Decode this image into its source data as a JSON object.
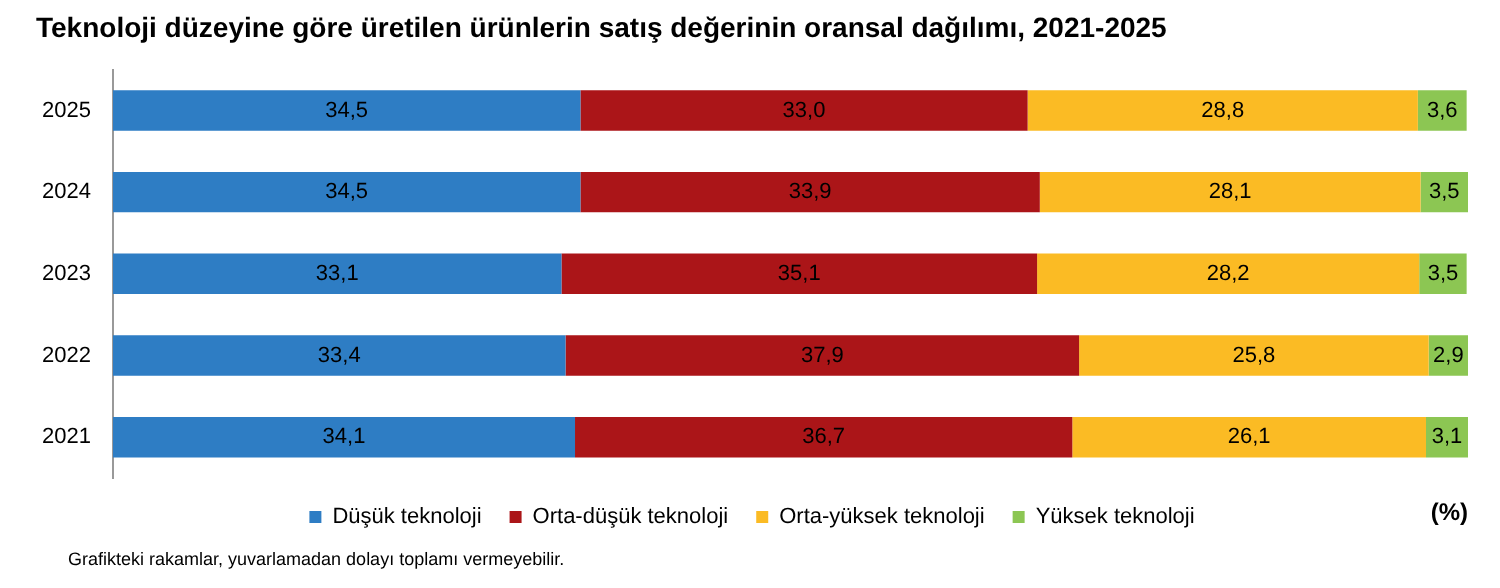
{
  "chart_data": {
    "type": "bar",
    "orientation": "horizontal",
    "stacked": true,
    "title": "Teknoloji düzeyine göre üretilen ürünlerin satış değerinin oransal dağılımı, 2021-2025",
    "xlabel": "(%)",
    "categories": [
      "2025",
      "2024",
      "2023",
      "2022",
      "2021"
    ],
    "series": [
      {
        "name": "Düşük teknoloji",
        "color": "#2e7dc4",
        "values": [
          34.5,
          34.5,
          33.1,
          33.4,
          34.1
        ],
        "value_labels": [
          "34,5",
          "34,5",
          "33,1",
          "33,4",
          "34,1"
        ]
      },
      {
        "name": "Orta-düşük teknoloji",
        "color": "#ab1518",
        "values": [
          33.0,
          33.9,
          35.1,
          37.9,
          36.7
        ],
        "value_labels": [
          "33,0",
          "33,9",
          "35,1",
          "37,9",
          "36,7"
        ]
      },
      {
        "name": "Orta-yüksek teknoloji",
        "color": "#fbbb24",
        "values": [
          28.8,
          28.1,
          28.2,
          25.8,
          26.1
        ],
        "value_labels": [
          "28,8",
          "28,1",
          "28,2",
          "25,8",
          "26,1"
        ]
      },
      {
        "name": "Yüksek teknoloji",
        "color": "#8cc653",
        "values": [
          3.6,
          3.5,
          3.5,
          2.9,
          3.1
        ],
        "value_labels": [
          "3,6",
          "3,5",
          "3,5",
          "2,9",
          "3,1"
        ]
      }
    ],
    "tick_labels": "y",
    "legend": "bottom",
    "annotations": [
      "Grafikteki rakamlar, yuvarlamadan dolayı toplamı vermeyebilir."
    ]
  }
}
